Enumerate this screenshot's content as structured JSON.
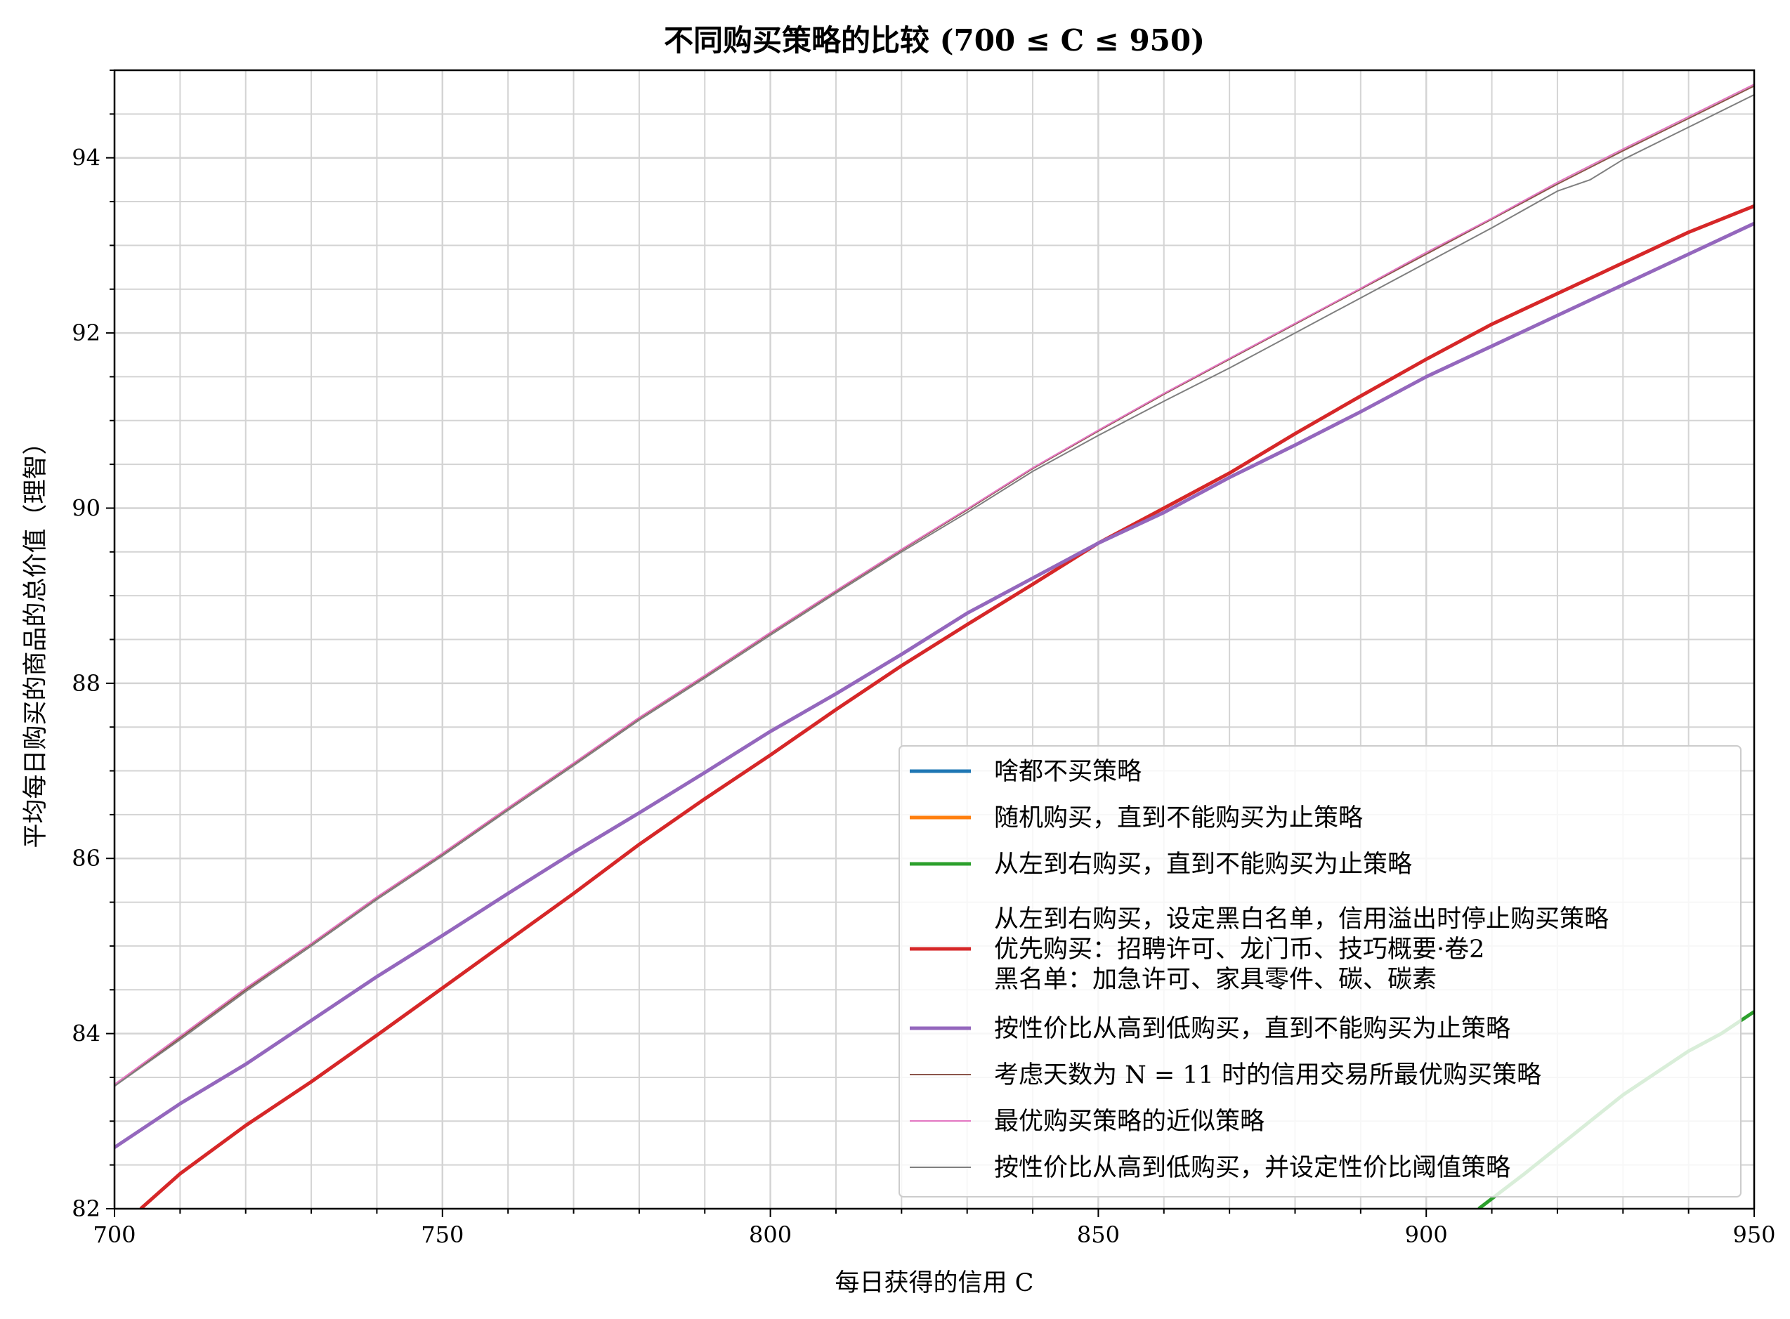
{
  "chart_data": {
    "type": "line",
    "title": "不同购买策略的比较 (700 ≤ C ≤ 950)",
    "xlabel": "每日获得的信用 C",
    "ylabel": "平均每日购买的商品的总价值（理智）",
    "xlim": [
      700,
      950
    ],
    "ylim": [
      82,
      95
    ],
    "x_ticks": [
      "700",
      "750",
      "800",
      "850",
      "900",
      "950"
    ],
    "y_ticks": [
      "82",
      "84",
      "86",
      "88",
      "90",
      "92",
      "94"
    ],
    "grid": true,
    "legend_position": "lower-right",
    "series": [
      {
        "name": "啥都不买策略",
        "color": "#1f77b4",
        "width": 5,
        "points": []
      },
      {
        "name": "随机购买，直到不能购买为止策略",
        "color": "#ff7f0e",
        "width": 5,
        "points": []
      },
      {
        "name": "从左到右购买，直到不能购买为止策略",
        "color": "#2ca02c",
        "width": 5,
        "points": [
          [
            908,
            82.0
          ],
          [
            915,
            82.4
          ],
          [
            920,
            82.7
          ],
          [
            925,
            83.0
          ],
          [
            930,
            83.3
          ],
          [
            935,
            83.55
          ],
          [
            940,
            83.8
          ],
          [
            945,
            84.0
          ],
          [
            950,
            84.25
          ]
        ]
      },
      {
        "name": "从左到右购买，设定黑白名单，信用溢出时停止购买策略\n优先购买：招聘许可、龙门币、技巧概要·卷2\n黑名单：加急许可、家具零件、碳、碳素",
        "color": "#d62728",
        "width": 5,
        "points": [
          [
            704,
            82.0
          ],
          [
            710,
            82.4
          ],
          [
            720,
            82.95
          ],
          [
            730,
            83.45
          ],
          [
            740,
            83.98
          ],
          [
            750,
            84.52
          ],
          [
            760,
            85.06
          ],
          [
            770,
            85.6
          ],
          [
            780,
            86.16
          ],
          [
            790,
            86.68
          ],
          [
            800,
            87.18
          ],
          [
            810,
            87.7
          ],
          [
            820,
            88.2
          ],
          [
            830,
            88.67
          ],
          [
            840,
            89.13
          ],
          [
            850,
            89.6
          ],
          [
            860,
            90.0
          ],
          [
            870,
            90.4
          ],
          [
            880,
            90.85
          ],
          [
            890,
            91.28
          ],
          [
            900,
            91.7
          ],
          [
            910,
            92.1
          ],
          [
            920,
            92.45
          ],
          [
            930,
            92.8
          ],
          [
            940,
            93.15
          ],
          [
            950,
            93.45
          ]
        ]
      },
      {
        "name": "按性价比从高到低购买，直到不能购买为止策略",
        "color": "#9467bd",
        "width": 5,
        "points": [
          [
            700,
            82.7
          ],
          [
            710,
            83.2
          ],
          [
            720,
            83.65
          ],
          [
            730,
            84.15
          ],
          [
            740,
            84.65
          ],
          [
            750,
            85.12
          ],
          [
            760,
            85.6
          ],
          [
            770,
            86.07
          ],
          [
            780,
            86.52
          ],
          [
            790,
            86.98
          ],
          [
            800,
            87.45
          ],
          [
            810,
            87.88
          ],
          [
            820,
            88.33
          ],
          [
            830,
            88.8
          ],
          [
            840,
            89.2
          ],
          [
            850,
            89.6
          ],
          [
            860,
            89.95
          ],
          [
            870,
            90.35
          ],
          [
            880,
            90.72
          ],
          [
            890,
            91.1
          ],
          [
            900,
            91.5
          ],
          [
            910,
            91.85
          ],
          [
            920,
            92.2
          ],
          [
            930,
            92.55
          ],
          [
            940,
            92.9
          ],
          [
            950,
            93.25
          ]
        ]
      },
      {
        "name": "考虑天数为 N = 11 时的信用交易所最优购买策略",
        "color": "#8c564b",
        "width": 2,
        "points": [
          [
            700,
            83.4
          ],
          [
            710,
            83.95
          ],
          [
            720,
            84.5
          ],
          [
            730,
            85.02
          ],
          [
            740,
            85.55
          ],
          [
            750,
            86.05
          ],
          [
            760,
            86.57
          ],
          [
            770,
            87.08
          ],
          [
            780,
            87.6
          ],
          [
            790,
            88.08
          ],
          [
            800,
            88.57
          ],
          [
            810,
            89.05
          ],
          [
            820,
            89.52
          ],
          [
            830,
            89.98
          ],
          [
            840,
            90.45
          ],
          [
            850,
            90.88
          ],
          [
            860,
            91.3
          ],
          [
            870,
            91.7
          ],
          [
            880,
            92.1
          ],
          [
            890,
            92.5
          ],
          [
            900,
            92.9
          ],
          [
            910,
            93.3
          ],
          [
            920,
            93.7
          ],
          [
            930,
            94.08
          ],
          [
            940,
            94.45
          ],
          [
            950,
            94.82
          ]
        ]
      },
      {
        "name": "最优购买策略的近似策略",
        "color": "#e377c2",
        "width": 2,
        "points": [
          [
            700,
            83.42
          ],
          [
            710,
            83.97
          ],
          [
            720,
            84.52
          ],
          [
            730,
            85.03
          ],
          [
            740,
            85.56
          ],
          [
            750,
            86.06
          ],
          [
            760,
            86.58
          ],
          [
            770,
            87.09
          ],
          [
            780,
            87.61
          ],
          [
            790,
            88.09
          ],
          [
            800,
            88.58
          ],
          [
            810,
            89.06
          ],
          [
            820,
            89.53
          ],
          [
            830,
            89.99
          ],
          [
            840,
            90.46
          ],
          [
            850,
            90.89
          ],
          [
            860,
            91.31
          ],
          [
            870,
            91.71
          ],
          [
            880,
            92.11
          ],
          [
            890,
            92.51
          ],
          [
            900,
            92.92
          ],
          [
            910,
            93.31
          ],
          [
            920,
            93.72
          ],
          [
            930,
            94.1
          ],
          [
            940,
            94.47
          ],
          [
            950,
            94.84
          ]
        ]
      },
      {
        "name": "按性价比从高到低购买，并设定性价比阈值策略",
        "color": "#7f7f7f",
        "width": 2,
        "points": [
          [
            700,
            83.4
          ],
          [
            710,
            83.93
          ],
          [
            720,
            84.48
          ],
          [
            730,
            85.0
          ],
          [
            740,
            85.53
          ],
          [
            750,
            86.03
          ],
          [
            760,
            86.55
          ],
          [
            770,
            87.06
          ],
          [
            780,
            87.58
          ],
          [
            790,
            88.06
          ],
          [
            800,
            88.55
          ],
          [
            810,
            89.03
          ],
          [
            820,
            89.5
          ],
          [
            830,
            89.95
          ],
          [
            840,
            90.42
          ],
          [
            850,
            90.83
          ],
          [
            860,
            91.22
          ],
          [
            870,
            91.6
          ],
          [
            880,
            92.0
          ],
          [
            890,
            92.4
          ],
          [
            900,
            92.8
          ],
          [
            910,
            93.2
          ],
          [
            920,
            93.62
          ],
          [
            925,
            93.75
          ],
          [
            930,
            93.98
          ],
          [
            940,
            94.35
          ],
          [
            950,
            94.72
          ]
        ]
      }
    ]
  }
}
